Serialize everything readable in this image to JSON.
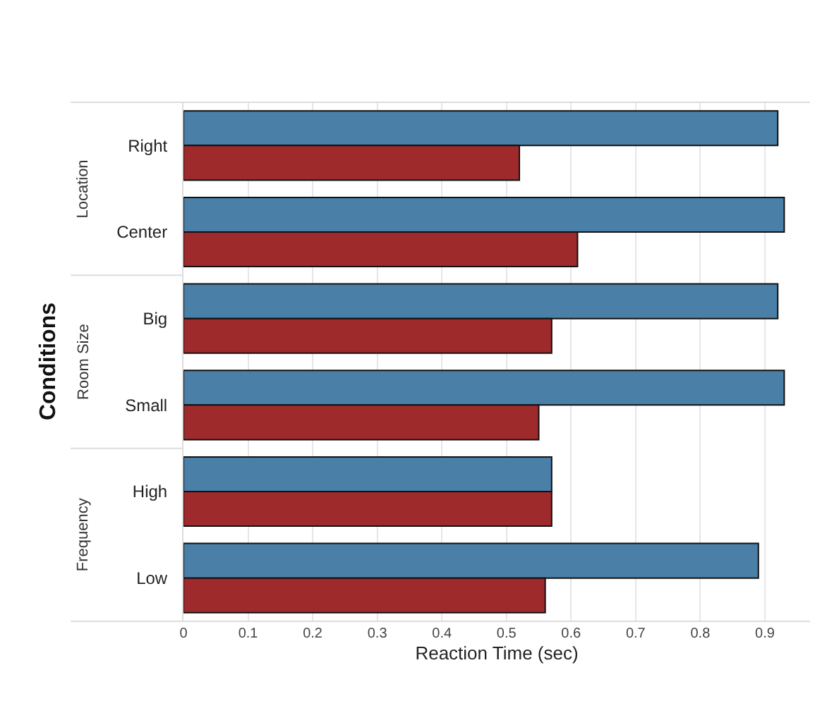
{
  "chart_data": {
    "type": "bar",
    "orientation": "horizontal",
    "xlabel": "Reaction Time (sec)",
    "ylabel": "Conditions",
    "categories": [
      "Right",
      "Center",
      "Big",
      "Small",
      "High",
      "Low"
    ],
    "series": [
      {
        "color": "#4a7fa8",
        "values": [
          0.92,
          0.93,
          0.92,
          0.93,
          0.57,
          0.89
        ]
      },
      {
        "color": "#9e2a2b",
        "values": [
          0.52,
          0.61,
          0.57,
          0.55,
          0.57,
          0.56
        ]
      }
    ],
    "annotations": [
      "Location",
      "Room Size",
      "Frequency"
    ],
    "xlim": [
      0,
      0.97
    ],
    "xticks": [
      0,
      0.1,
      0.2,
      0.3,
      0.4,
      0.5,
      0.6,
      0.7,
      0.8,
      0.9
    ],
    "grid": "x",
    "legend": false
  }
}
